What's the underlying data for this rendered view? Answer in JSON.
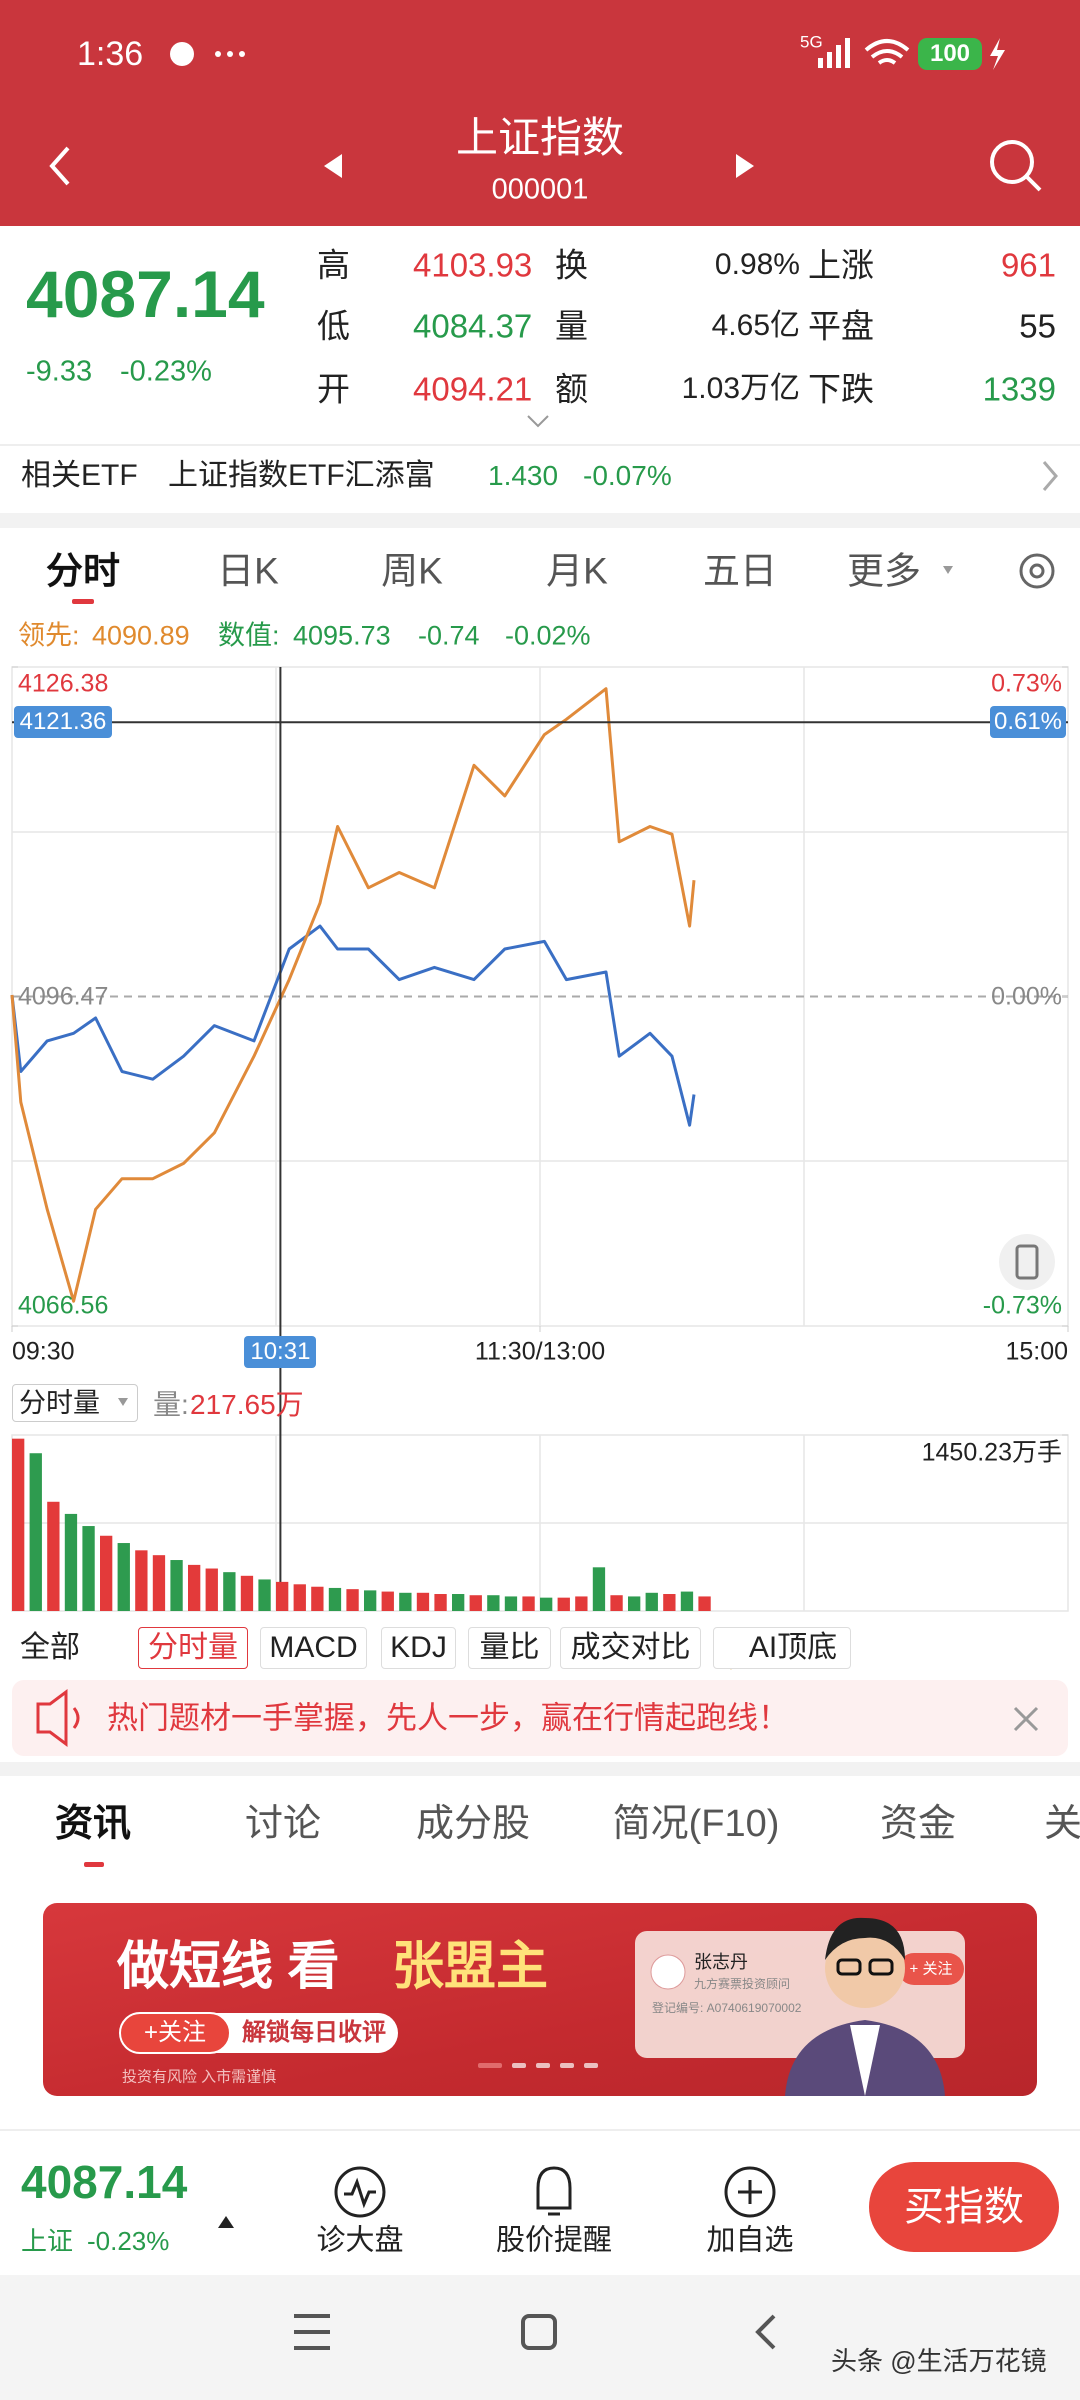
{
  "status_bar": {
    "time": "1:36",
    "network": "5G",
    "battery": "100"
  },
  "header": {
    "title": "上证指数",
    "code": "000001"
  },
  "quote": {
    "price": "4087.14",
    "change": "-9.33",
    "change_pct": "-0.23%",
    "stats": [
      [
        {
          "label": "高",
          "value": "4103.93"
        },
        {
          "label": "换",
          "value": "0.98%"
        },
        {
          "label": "上涨",
          "value": "961"
        }
      ],
      [
        {
          "label": "低",
          "value": "4084.37"
        },
        {
          "label": "量",
          "value": "4.65亿"
        },
        {
          "label": "平盘",
          "value": "55"
        }
      ],
      [
        {
          "label": "开",
          "value": "4094.21"
        },
        {
          "label": "额",
          "value": "1.03万亿"
        },
        {
          "label": "下跌",
          "value": "1339"
        }
      ]
    ]
  },
  "etf": {
    "label": "相关ETF",
    "name": "上证指数ETF汇添富",
    "price": "1.430",
    "change_pct": "-0.07%"
  },
  "chart_tabs": [
    "分时",
    "日K",
    "周K",
    "月K",
    "五日",
    "更多"
  ],
  "readout": {
    "lead_label": "领先:",
    "lead_value": "4090.89",
    "value_label": "数值:",
    "value": "4095.73",
    "change": "-0.74",
    "change_pct": "-0.02%"
  },
  "chart_data": [
    {
      "type": "line",
      "x": [
        0,
        2,
        8,
        14,
        19,
        25,
        32,
        39,
        46,
        55,
        63,
        70,
        74,
        81,
        88,
        96,
        105,
        112,
        121,
        126,
        135,
        138,
        145,
        150,
        154,
        155
      ],
      "series": [
        {
          "color": "#3a6fc4",
          "values": [
            4096.61,
            4089.66,
            4092.44,
            4093.13,
            4094.52,
            4089.66,
            4088.96,
            4091.05,
            4093.83,
            4092.44,
            4100.78,
            4102.86,
            4100.78,
            4100.78,
            4098.0,
            4099.11,
            4098.0,
            4100.78,
            4101.47,
            4098.0,
            4098.69,
            4091.05,
            4093.13,
            4091.05,
            4084.79,
            4087.57
          ]
        },
        {
          "color": "#e08a3a",
          "values": [
            4096.61,
            4086.88,
            4077.15,
            4068.81,
            4077.15,
            4079.93,
            4079.93,
            4081.32,
            4084.1,
            4091.05,
            4098.0,
            4104.95,
            4111.9,
            4106.34,
            4107.73,
            4106.34,
            4117.46,
            4114.68,
            4120.24,
            4121.63,
            4124.41,
            4110.51,
            4111.9,
            4111.2,
            4102.86,
            4107.03
          ]
        }
      ],
      "xlim": [
        0,
        240
      ],
      "xticks": [
        {
          "value": 0,
          "label": "09:30"
        },
        {
          "value": 120,
          "label": "11:30/13:00"
        },
        {
          "value": 240,
          "label": "15:00"
        }
      ],
      "ylim": [
        4066.56,
        4126.38
      ],
      "yticks": [
        4066.56,
        4096.47,
        4126.38
      ],
      "y2lim": [
        -0.73,
        0.73
      ],
      "y2ticks": [
        {
          "value": -0.73,
          "label": "-0.73%"
        },
        {
          "value": 0,
          "label": "0.00%"
        },
        {
          "value": 0.73,
          "label": "0.73%"
        }
      ],
      "crosshair": {
        "x": {
          "value": 61,
          "label": "10:31"
        },
        "y": 4121.36,
        "y2": {
          "value": 0.61,
          "label": "0.61%"
        }
      }
    },
    {
      "type": "bar",
      "label": "分时量",
      "total_label": "量:",
      "total": "217.65万",
      "x": [
        0,
        4,
        8,
        12,
        16,
        20,
        24,
        28,
        32,
        36,
        40,
        44,
        48,
        52,
        56,
        60,
        64,
        68,
        72,
        76,
        80,
        84,
        88,
        92,
        96,
        100,
        104,
        108,
        112,
        116,
        120,
        124,
        128,
        132,
        136,
        140,
        144,
        148,
        152,
        156
      ],
      "values": [
        1420,
        1300,
        900,
        800,
        700,
        620,
        560,
        500,
        460,
        420,
        380,
        350,
        320,
        290,
        260,
        240,
        220,
        200,
        190,
        180,
        170,
        160,
        150,
        150,
        140,
        140,
        130,
        130,
        120,
        120,
        110,
        110,
        120,
        360,
        130,
        120,
        150,
        140,
        160,
        120
      ],
      "colors": [
        "#e33a3a",
        "#2e9b4f",
        "#e33a3a",
        "#2e9b4f",
        "#2e9b4f",
        "#e33a3a",
        "#2e9b4f",
        "#e33a3a",
        "#e33a3a",
        "#2e9b4f",
        "#e33a3a",
        "#e33a3a",
        "#2e9b4f",
        "#e33a3a",
        "#2e9b4f",
        "#e33a3a",
        "#e33a3a",
        "#e33a3a",
        "#2e9b4f",
        "#e33a3a",
        "#2e9b4f",
        "#e33a3a",
        "#2e9b4f",
        "#e33a3a",
        "#e33a3a",
        "#2e9b4f",
        "#e33a3a",
        "#2e9b4f",
        "#2e9b4f",
        "#e33a3a",
        "#2e9b4f",
        "#e33a3a",
        "#e33a3a",
        "#2e9b4f",
        "#e33a3a",
        "#2e9b4f",
        "#2e9b4f",
        "#e33a3a",
        "#2e9b4f",
        "#e33a3a"
      ],
      "xlim": [
        0,
        240
      ],
      "ylim": [
        0,
        1450.23
      ],
      "yticks": [
        {
          "value": 1450.23,
          "label": "1450.23万手"
        }
      ]
    }
  ],
  "indicator_buttons": [
    "全部",
    "分时量",
    "MACD",
    "KDJ",
    "量比",
    "成交对比",
    "AI顶底"
  ],
  "notice": "热门题材一手掌握，先人一步，赢在行情起跑线！",
  "news_tabs": [
    "资讯",
    "讨论",
    "成分股",
    "简况(F10)",
    "资金",
    "关"
  ],
  "ad": {
    "headline": "做短线 看",
    "headline_name": "张盟主",
    "follow": "+关注",
    "unlock": "解锁每日收评",
    "disclaimer": "投资有风险 入市需谨慎",
    "advisor": "张志丹",
    "advisor_title": "九方赛票投资顾问",
    "reg_no": "登记编号: A0740619070002",
    "advisor_follow": "+ 关注"
  },
  "bottom_bar": {
    "price": "4087.14",
    "name": "上证",
    "change_pct": "-0.23%",
    "actions": [
      "诊大盘",
      "股价提醒",
      "加自选"
    ],
    "buy": "买指数"
  },
  "watermark": "头条 @生活万花镜"
}
